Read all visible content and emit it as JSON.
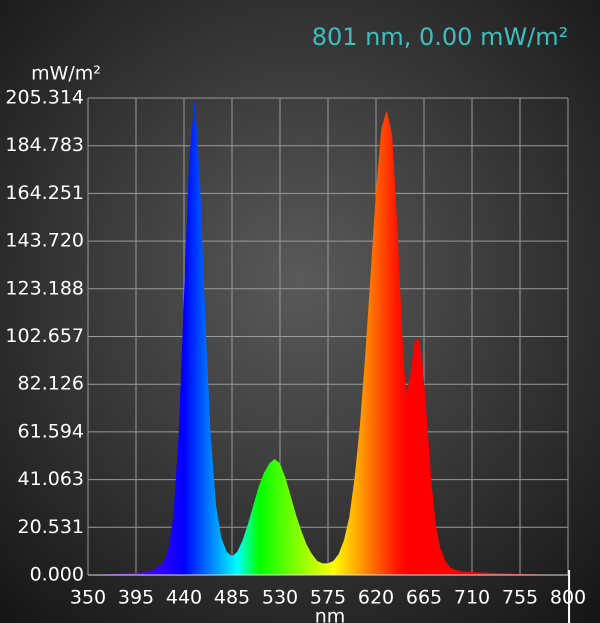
{
  "chart_data": {
    "type": "area",
    "title": "801 nm, 0.00 mW/m²",
    "y_label": "mW/m²",
    "x_label": "nm",
    "x": [
      350,
      380,
      400,
      410,
      420,
      425,
      430,
      435,
      440,
      445,
      450,
      455,
      460,
      465,
      470,
      475,
      480,
      485,
      490,
      495,
      500,
      505,
      510,
      515,
      520,
      525,
      530,
      535,
      540,
      545,
      550,
      555,
      560,
      565,
      570,
      575,
      580,
      585,
      590,
      595,
      600,
      605,
      610,
      615,
      620,
      625,
      630,
      635,
      640,
      645,
      648,
      652,
      656,
      660,
      664,
      668,
      672,
      676,
      680,
      685,
      690,
      700,
      720,
      750,
      800
    ],
    "values": [
      0,
      0.5,
      1,
      2,
      5,
      10,
      25,
      60,
      120,
      180,
      205,
      170,
      110,
      60,
      30,
      16,
      10,
      8,
      10,
      15,
      22,
      30,
      38,
      44,
      48,
      50,
      48,
      42,
      34,
      26,
      19,
      13,
      9,
      6,
      5,
      5,
      6,
      9,
      15,
      25,
      42,
      65,
      95,
      130,
      165,
      192,
      200,
      190,
      150,
      100,
      78,
      85,
      100,
      102,
      90,
      65,
      40,
      22,
      12,
      6,
      3,
      1.5,
      1,
      0.5,
      0
    ],
    "xlim": [
      350,
      800
    ],
    "xticks": [
      350,
      395,
      440,
      485,
      530,
      575,
      620,
      665,
      710,
      755,
      800
    ],
    "ylim": [
      0,
      205.314
    ],
    "yticks": [
      {
        "value": 0,
        "label": "0.000"
      },
      20.531,
      41.063,
      61.594,
      82.126,
      {
        "value": 102.657,
        "label": "102.657"
      },
      {
        "value": 123.188,
        "label": "123.188"
      },
      {
        "value": 143.72,
        "label": "143.720"
      },
      164.251,
      184.783,
      205.314
    ],
    "grid": true,
    "cursor_x": 801
  }
}
